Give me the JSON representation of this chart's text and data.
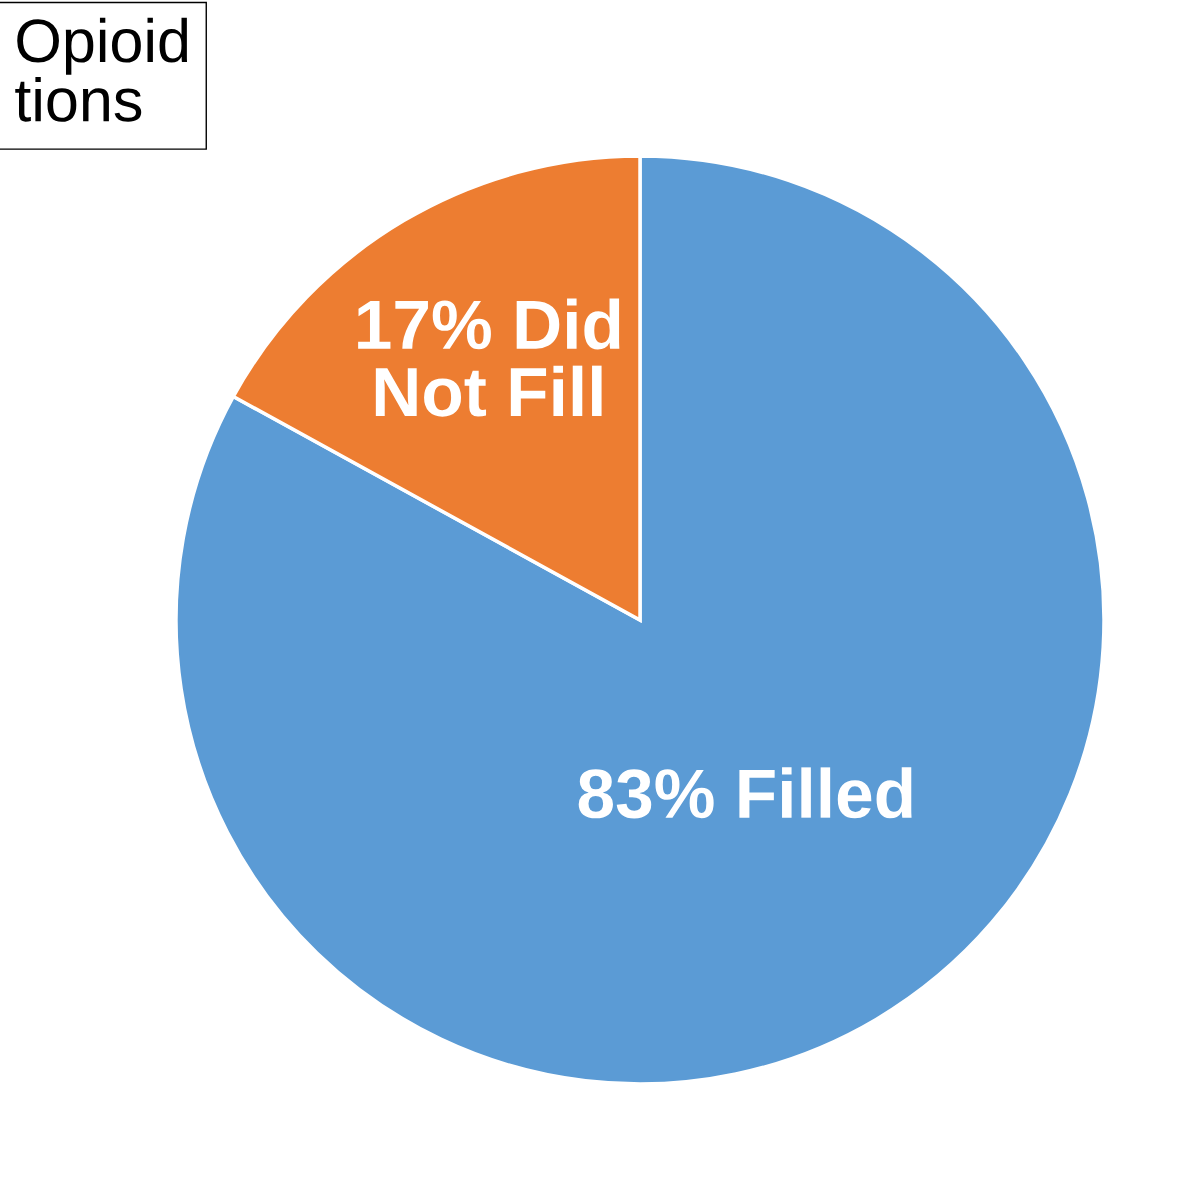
{
  "chart_data": {
    "type": "pie",
    "annotations": [
      "Opioid\ntions"
    ],
    "categories": [
      "83% Filled",
      "17% Did\nNot Fill"
    ],
    "values": [
      83,
      17
    ],
    "colors": [
      "#5b9bd5",
      "#ed7d31"
    ]
  }
}
